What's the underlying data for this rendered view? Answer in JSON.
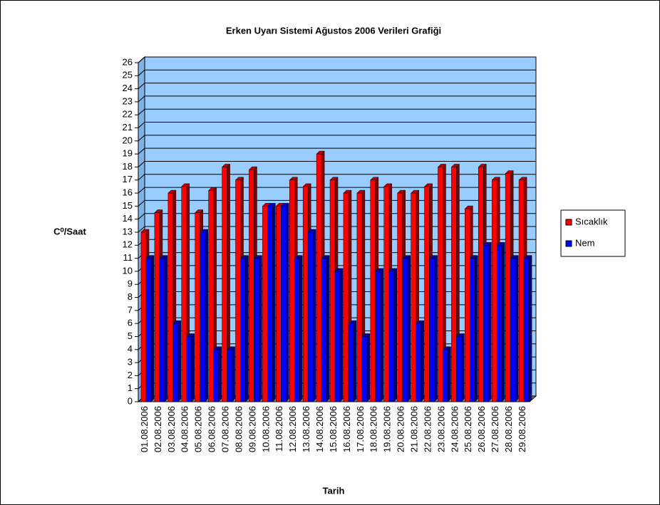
{
  "chart_data": {
    "type": "bar3d",
    "title": "Erken Uyarı Sistemi Ağustos 2006 Verileri Grafiği",
    "x_label": "Tarih",
    "y_label": "C⁰/Saat",
    "categories": [
      "01.08.2006",
      "02.08.2006",
      "03.08.2006",
      "04.08.2006",
      "05.08.2006",
      "06.08.2006",
      "07.08.2006",
      "08.08.2006",
      "09.08.2006",
      "10.08.2006",
      "11.08.2006",
      "12.08.2006",
      "13.08.2006",
      "14.08.2006",
      "15.08.2006",
      "16.08.2006",
      "17.08.2006",
      "18.08.2006",
      "19.08.2006",
      "20.08.2006",
      "21.08.2006",
      "22.08.2006",
      "23.08.2006",
      "24.08.2006",
      "25.08.2006",
      "26.08.2006",
      "27.08.2006",
      "28.08.2006",
      "29.08.2006"
    ],
    "series": [
      {
        "name": "Sıcaklık",
        "color": "#ff0000",
        "values": [
          13,
          14.5,
          16,
          16.5,
          14.5,
          16.2,
          18,
          17,
          17.8,
          15,
          15,
          17,
          16.5,
          19,
          17,
          16,
          16,
          17,
          16.5,
          16,
          16,
          16.5,
          18,
          18,
          14.8,
          18,
          17,
          17.5,
          17
        ]
      },
      {
        "name": "Nem",
        "color": "#0000ff",
        "values": [
          11,
          11,
          6,
          5,
          13,
          4,
          4,
          11,
          11,
          15,
          15,
          11,
          13,
          11,
          10,
          6,
          5,
          10,
          10,
          11,
          6,
          11,
          4,
          5,
          11,
          12,
          12,
          11,
          11
        ]
      }
    ],
    "ylim": [
      0,
      26
    ],
    "yticks": [
      0,
      1,
      2,
      3,
      4,
      5,
      6,
      7,
      8,
      9,
      10,
      11,
      12,
      13,
      14,
      15,
      16,
      17,
      18,
      19,
      20,
      21,
      22,
      23,
      24,
      25,
      26
    ],
    "grid": true,
    "legend": "right",
    "wall_color": "#99ccff"
  }
}
